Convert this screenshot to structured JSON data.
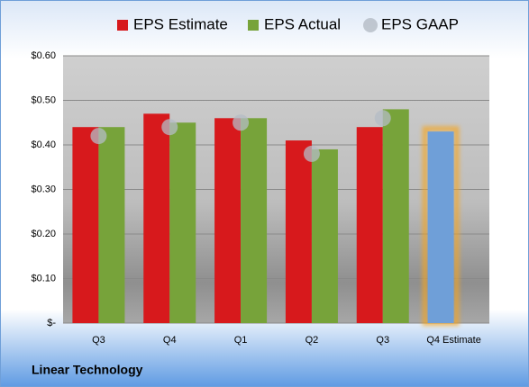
{
  "chart_data": {
    "type": "bar",
    "subtitle": "Linear Technology",
    "categories": [
      "Q3",
      "Q4",
      "Q1",
      "Q2",
      "Q3",
      "Q4 Estimate"
    ],
    "series": [
      {
        "name": "EPS Estimate",
        "color": "#d7191c",
        "values": [
          0.44,
          0.47,
          0.46,
          0.41,
          0.44,
          0.43
        ],
        "colors": [
          "#d7191c",
          "#d7191c",
          "#d7191c",
          "#d7191c",
          "#d7191c",
          "#6f9fd8"
        ]
      },
      {
        "name": "EPS Actual",
        "color": "#77a33a",
        "values": [
          0.44,
          0.45,
          0.46,
          0.39,
          0.48,
          null
        ]
      },
      {
        "name": "EPS GAAP",
        "color": "#b4bcc6",
        "marker": "circle",
        "values": [
          0.42,
          0.44,
          0.45,
          0.38,
          0.46,
          null
        ]
      }
    ],
    "ylim": [
      0,
      0.6
    ],
    "yticks": [
      {
        "value": 0,
        "label": "$-"
      },
      {
        "value": 0.1,
        "label": "$0.10"
      },
      {
        "value": 0.2,
        "label": "$0.20"
      },
      {
        "value": 0.3,
        "label": "$0.30"
      },
      {
        "value": 0.4,
        "label": "$0.40"
      },
      {
        "value": 0.5,
        "label": "$0.50"
      },
      {
        "value": 0.6,
        "label": "$0.60"
      }
    ],
    "grid": true,
    "legend": "top"
  }
}
